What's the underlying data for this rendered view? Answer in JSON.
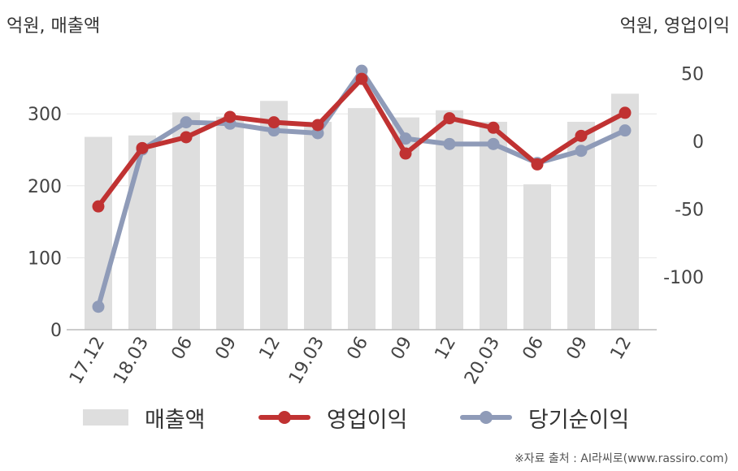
{
  "chart_data": {
    "type": "bar+line",
    "categories": [
      "17.12",
      "18.03",
      "06",
      "09",
      "12",
      "19.03",
      "06",
      "09",
      "12",
      "20.03",
      "06",
      "09",
      "12"
    ],
    "left_axis": {
      "label": "억원, 매출액",
      "ylim": [
        0,
        400
      ],
      "ticks": [
        0,
        100,
        200,
        300
      ]
    },
    "right_axis": {
      "label": "억원, 영업이익",
      "ylim": [
        -140,
        60
      ],
      "ticks": [
        -100,
        -50,
        0,
        50
      ]
    },
    "series": [
      {
        "name": "매출액",
        "kind": "bar",
        "axis": "left",
        "color": "#dedede",
        "values": [
          268,
          270,
          302,
          296,
          318,
          289,
          308,
          295,
          305,
          289,
          202,
          289,
          328
        ]
      },
      {
        "name": "영업이익",
        "kind": "line",
        "axis": "right",
        "color": "#c03232",
        "values": [
          -48,
          -5,
          3,
          18,
          14,
          12,
          46,
          -9,
          17,
          10,
          -17,
          4,
          21
        ]
      },
      {
        "name": "당기순이익",
        "kind": "line",
        "axis": "right",
        "color": "#8f9bb8",
        "values": [
          -122,
          -6,
          14,
          13,
          8,
          6,
          52,
          2,
          -2,
          -2,
          -16,
          -7,
          8
        ]
      }
    ],
    "grid": true,
    "legend_position": "bottom"
  },
  "source": "※자료 출처 : AI라씨로(www.rassiro.com)"
}
